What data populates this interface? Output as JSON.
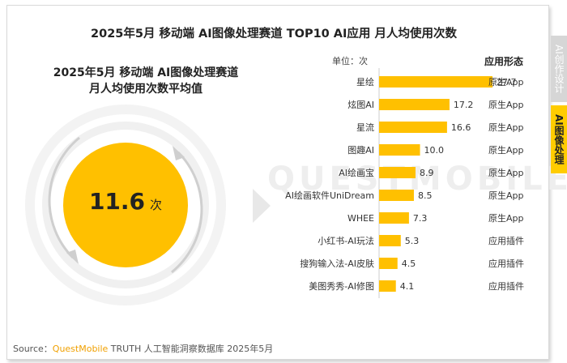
{
  "title": "2025年5月 移动端 AI图像处理赛道 TOP10 AI应用 月人均使用次数",
  "summary": {
    "title_line1": "2025年5月 移动端 AI图像处理赛道",
    "title_line2": "月人均使用次数平均值",
    "value": "11.6",
    "unit": "次"
  },
  "watermark": "QUESTMOBILE",
  "unit_label": "单位：次",
  "type_header": "应用形态",
  "sidebar": {
    "tab1": "AI创作设计",
    "tab2": "AI图像处理"
  },
  "footer": {
    "prefix": "Source：",
    "brand": "QuestMobile",
    "rest": " TRUTH 人工智能洞察数据库 2025年5月"
  },
  "colors": {
    "bar": "#ffc000",
    "circle": "#ffc000",
    "ring": "#cccccc"
  },
  "chart_data": {
    "type": "bar",
    "orientation": "horizontal",
    "categories": [
      "星绘",
      "炫图AI",
      "星流",
      "图趣AI",
      "AI绘画宝",
      "AI绘画软件UniDream",
      "WHEE",
      "小红书-AI玩法",
      "搜狗输入法-AI皮肤",
      "美图秀秀-AI修图"
    ],
    "values": [
      27.7,
      17.2,
      16.6,
      10.0,
      8.9,
      8.5,
      7.3,
      5.3,
      4.5,
      4.1
    ],
    "value_labels": [
      "27.7",
      "17.2",
      "16.6",
      "10.0",
      "8.9",
      "8.5",
      "7.3",
      "5.3",
      "4.5",
      "4.1"
    ],
    "types": [
      "原生App",
      "原生App",
      "原生App",
      "原生App",
      "原生App",
      "原生App",
      "原生App",
      "应用插件",
      "应用插件",
      "应用插件"
    ],
    "xlim": [
      0,
      27.7
    ]
  }
}
